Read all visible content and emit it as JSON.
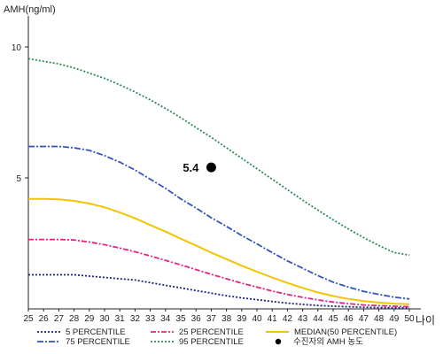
{
  "chart_data": {
    "type": "line",
    "xlabel": "나이",
    "ylabel": "AMH(ng/ml)",
    "xlim": [
      25,
      50
    ],
    "ylim": [
      0,
      11
    ],
    "x": [
      25,
      26,
      27,
      28,
      29,
      30,
      31,
      32,
      33,
      34,
      35,
      36,
      37,
      38,
      39,
      40,
      41,
      42,
      43,
      44,
      45,
      46,
      47,
      48,
      49,
      50
    ],
    "x_ticks": [
      "25",
      "26",
      "27",
      "28",
      "29",
      "30",
      "31",
      "32",
      "33",
      "34",
      "35",
      "36",
      "37",
      "38",
      "39",
      "40",
      "41",
      "42",
      "43",
      "44",
      "45",
      "46",
      "47",
      "48",
      "49",
      "50"
    ],
    "y_ticks": [
      {
        "value": 5,
        "label": "5"
      },
      {
        "value": 10,
        "label": "10"
      }
    ],
    "series": [
      {
        "name": "5 PERCENTILE",
        "color": "#1a237e",
        "dash": "2,2",
        "values": [
          1.3,
          1.3,
          1.3,
          1.3,
          1.25,
          1.2,
          1.15,
          1.1,
          1.0,
          0.9,
          0.8,
          0.7,
          0.6,
          0.5,
          0.42,
          0.35,
          0.28,
          0.22,
          0.17,
          0.13,
          0.1,
          0.08,
          0.06,
          0.05,
          0.04,
          0.04
        ]
      },
      {
        "name": "25 PERCENTILE",
        "color": "#e6247e",
        "dash": "6,2,2,2",
        "values": [
          2.65,
          2.65,
          2.65,
          2.63,
          2.55,
          2.45,
          2.32,
          2.18,
          2.02,
          1.85,
          1.68,
          1.5,
          1.32,
          1.15,
          0.98,
          0.83,
          0.68,
          0.55,
          0.44,
          0.34,
          0.26,
          0.2,
          0.15,
          0.12,
          0.1,
          0.08
        ]
      },
      {
        "name": "MEDIAN(50 PERCENTILE)",
        "color": "#f2c500",
        "dash": "",
        "values": [
          4.2,
          4.2,
          4.18,
          4.12,
          4.02,
          3.88,
          3.68,
          3.46,
          3.2,
          2.95,
          2.68,
          2.42,
          2.15,
          1.9,
          1.65,
          1.42,
          1.2,
          0.99,
          0.8,
          0.63,
          0.49,
          0.38,
          0.3,
          0.24,
          0.2,
          0.18
        ]
      },
      {
        "name": "75 PERCENTILE",
        "color": "#3355bb",
        "dash": "7,2,2,2",
        "values": [
          6.2,
          6.2,
          6.2,
          6.15,
          6.05,
          5.85,
          5.6,
          5.3,
          4.95,
          4.6,
          4.2,
          3.85,
          3.48,
          3.15,
          2.8,
          2.48,
          2.15,
          1.83,
          1.55,
          1.27,
          1.02,
          0.83,
          0.67,
          0.55,
          0.45,
          0.38
        ]
      },
      {
        "name": "95 PERCENTILE",
        "color": "#2e8b57",
        "dash": "2,2",
        "values": [
          9.55,
          9.45,
          9.35,
          9.2,
          9.0,
          8.8,
          8.55,
          8.28,
          7.98,
          7.65,
          7.3,
          6.92,
          6.55,
          6.15,
          5.75,
          5.35,
          4.95,
          4.55,
          4.15,
          3.77,
          3.4,
          3.05,
          2.72,
          2.42,
          2.15,
          2.05
        ]
      }
    ],
    "marker": {
      "name": "수진자의 AMH 농도",
      "x": 37,
      "y": 5.4,
      "label": "5.4",
      "color": "#000000"
    }
  }
}
